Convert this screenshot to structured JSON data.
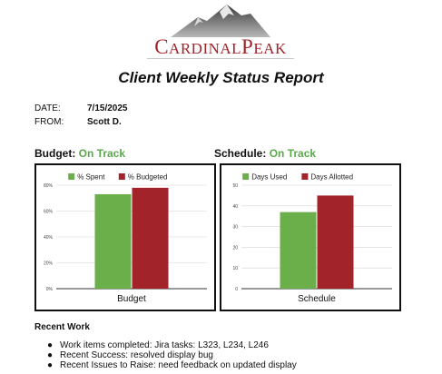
{
  "logo": {
    "first_cap": "C",
    "first_rest": "ARDINAL",
    "second_cap": "P",
    "second_rest": "EAK"
  },
  "title": "Client Weekly Status Report",
  "meta": {
    "date_label": "DATE:",
    "date_value": "7/15/2025",
    "from_label": "FROM:",
    "from_value": "Scott D."
  },
  "budget": {
    "heading": "Budget:",
    "status": "On Track"
  },
  "schedule": {
    "heading": "Schedule:",
    "status": "On Track"
  },
  "colors": {
    "green": "#6aaf4a",
    "red": "#a3232b",
    "status_green": "#5aa84a"
  },
  "chart_data": [
    {
      "type": "bar",
      "categories": [
        "Budget"
      ],
      "series": [
        {
          "name": "% Spent",
          "values": [
            73
          ],
          "color": "#6aaf4a"
        },
        {
          "name": "% Budgeted",
          "values": [
            78
          ],
          "color": "#a3232b"
        }
      ],
      "ylim": [
        0,
        80
      ],
      "yticks": [
        0,
        20,
        40,
        60,
        80
      ],
      "ytick_labels": [
        "0%",
        "20%",
        "40%",
        "60%",
        "80%"
      ],
      "legend": "top",
      "grid": true
    },
    {
      "type": "bar",
      "categories": [
        "Schedule"
      ],
      "series": [
        {
          "name": "Days Used",
          "values": [
            37
          ],
          "color": "#6aaf4a"
        },
        {
          "name": "Days Allotted",
          "values": [
            45
          ],
          "color": "#a3232b"
        }
      ],
      "ylim": [
        0,
        50
      ],
      "yticks": [
        0,
        10,
        20,
        30,
        40,
        50
      ],
      "ytick_labels": [
        "0",
        "10",
        "20",
        "30",
        "40",
        "50"
      ],
      "legend": "top",
      "grid": true
    }
  ],
  "recent_work": {
    "title": "Recent Work",
    "bullet": "●",
    "items": [
      "Work items completed: Jira tasks: L323, L234, L246",
      "Recent Success: resolved display bug",
      "Recent Issues to Raise: need feedback on updated display"
    ]
  }
}
